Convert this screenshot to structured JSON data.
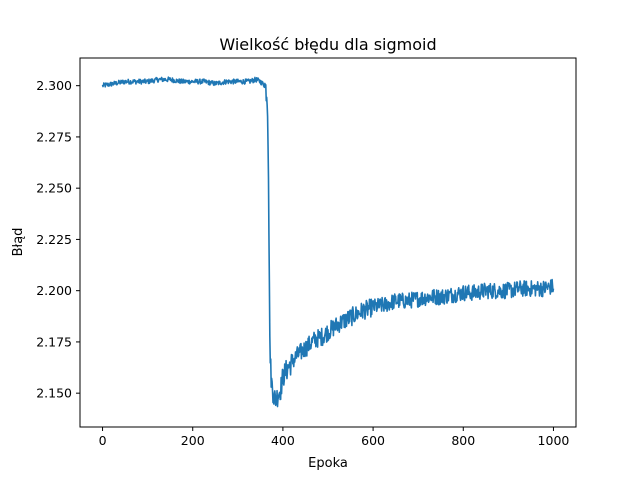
{
  "chart_data": {
    "type": "line",
    "title": "Wielkość błędu dla sigmoid",
    "xlabel": "Epoka",
    "ylabel": "Błąd",
    "xlim": [
      -50,
      1050
    ],
    "ylim": [
      2.1335,
      2.3135
    ],
    "xticks": [
      0,
      200,
      400,
      600,
      800,
      1000
    ],
    "yticks": [
      2.15,
      2.175,
      2.2,
      2.225,
      2.25,
      2.275,
      2.3
    ],
    "xtick_labels": [
      "0",
      "200",
      "400",
      "600",
      "800",
      "1000"
    ],
    "ytick_labels": [
      "2.150",
      "2.175",
      "2.200",
      "2.225",
      "2.250",
      "2.275",
      "2.300"
    ],
    "grid": false,
    "series": [
      {
        "color": "#1f77b4",
        "x": [
          0,
          25,
          50,
          75,
          100,
          125,
          150,
          175,
          200,
          225,
          250,
          275,
          300,
          325,
          340,
          350,
          355,
          360,
          364,
          366,
          368,
          370,
          372,
          375,
          380,
          385,
          390,
          395,
          400,
          410,
          420,
          430,
          440,
          450,
          460,
          470,
          480,
          490,
          500,
          525,
          550,
          575,
          600,
          625,
          650,
          675,
          700,
          725,
          750,
          775,
          800,
          825,
          850,
          875,
          900,
          925,
          950,
          975,
          1000
        ],
        "y": [
          2.3,
          2.301,
          2.302,
          2.302,
          2.302,
          2.303,
          2.303,
          2.302,
          2.302,
          2.302,
          2.301,
          2.302,
          2.302,
          2.302,
          2.303,
          2.302,
          2.301,
          2.3,
          2.297,
          2.29,
          2.26,
          2.2,
          2.165,
          2.155,
          2.148,
          2.147,
          2.15,
          2.152,
          2.158,
          2.162,
          2.165,
          2.168,
          2.17,
          2.172,
          2.174,
          2.176,
          2.177,
          2.178,
          2.18,
          2.184,
          2.187,
          2.19,
          2.192,
          2.193,
          2.195,
          2.195,
          2.196,
          2.197,
          2.197,
          2.198,
          2.199,
          2.199,
          2.2,
          2.2,
          2.2,
          2.201,
          2.201,
          2.201,
          2.202
        ]
      }
    ]
  }
}
